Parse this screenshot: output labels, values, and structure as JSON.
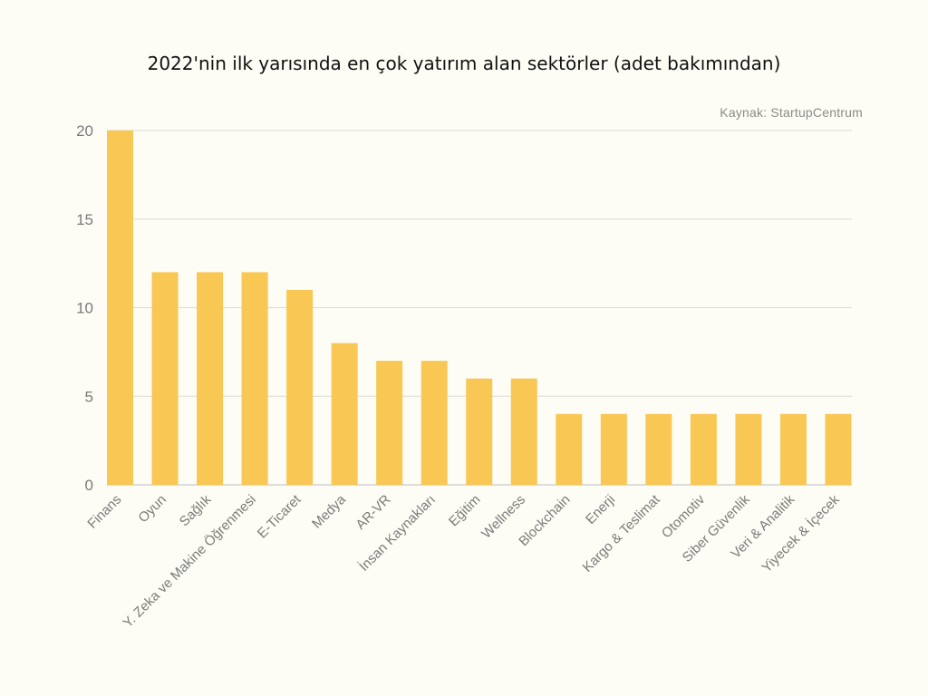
{
  "chart_data": {
    "type": "bar",
    "title": "2022'nin ilk yarısında en çok yatırım alan sektörler (adet bakımından)",
    "source": "Kaynak: StartupCentrum",
    "xlabel": "",
    "ylabel": "",
    "ylim": [
      0,
      20
    ],
    "yticks": [
      "0",
      "5",
      "10",
      "15",
      "20"
    ],
    "grid": true,
    "bar_color": "#f8c754",
    "categories": [
      "Finans",
      "Oyun",
      "Sağlık",
      "Y. Zeka ve Makine Öğrenmesi",
      "E-Ticaret",
      "Medya",
      "AR-VR",
      "İnsan Kaynakları",
      "Eğitim",
      "Wellness",
      "Blockchain",
      "Enerji",
      "Kargo & Teslimat",
      "Otomotiv",
      "Siber Güvenlik",
      "Veri & Analitik",
      "Yiyecek & İçecek"
    ],
    "values": [
      20,
      12,
      12,
      12,
      11,
      8,
      7,
      7,
      6,
      6,
      4,
      4,
      4,
      4,
      4,
      4,
      4
    ]
  }
}
